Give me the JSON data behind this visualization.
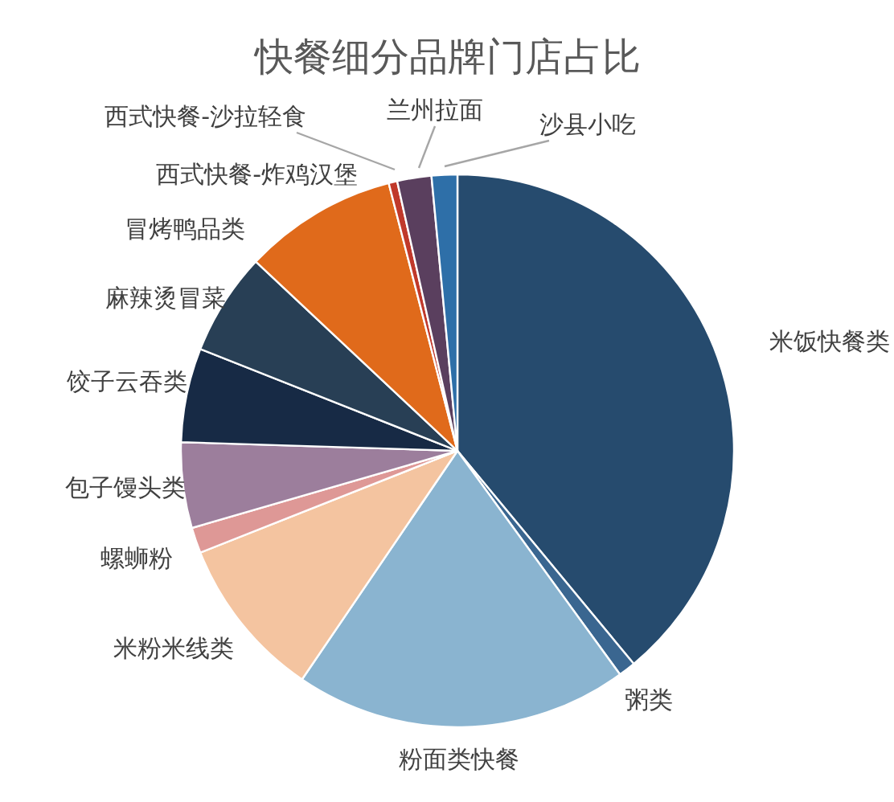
{
  "chart_data": {
    "type": "pie",
    "title": "快餐细分品牌门店占比",
    "categories": [
      "米饭快餐类",
      "粥类",
      "粉面类快餐",
      "米粉米线类",
      "螺蛳粉",
      "包子馒头类",
      "饺子云吞类",
      "麻辣烫冒菜",
      "冒烤鸭品类",
      "西式快餐-炸鸡汉堡",
      "西式快餐-沙拉轻食",
      "兰州拉面",
      "沙县小吃"
    ],
    "values": [
      39,
      1,
      19.5,
      9.5,
      1.5,
      5,
      5.5,
      6,
      null,
      9,
      0.5,
      2,
      1.5
    ],
    "colors": [
      "#264b6e",
      "#3a6690",
      "#8ab4d0",
      "#f4c4a0",
      "#de9896",
      "#9c7e9c",
      "#172a45",
      "#283f55",
      "#e07b39",
      "#e06a1b",
      "#c0392b",
      "#5a3f5e",
      "#2e6fa8"
    ]
  }
}
